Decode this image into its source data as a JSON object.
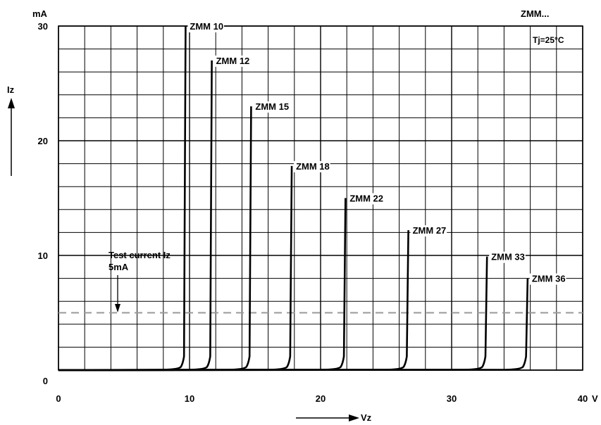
{
  "chart_data": {
    "type": "line",
    "top_right_label": "ZMM...",
    "condition_label": "Tj=25°C",
    "y_unit": "mA",
    "y_axis_label": "Iz",
    "x_axis_label": "Vz",
    "x_unit": "V",
    "xlim": [
      0,
      40
    ],
    "ylim": [
      0,
      30
    ],
    "x_tick_labels": [
      "0",
      "10",
      "20",
      "30",
      "40"
    ],
    "y_tick_labels": [
      "0",
      "10",
      "20",
      "30"
    ],
    "grid": true,
    "test_current": {
      "line1": "Test current Iz",
      "line2": "5mA",
      "value": 5
    },
    "series": [
      {
        "name": "ZMM 10",
        "breakdown_v": 9.7,
        "max_current": 30
      },
      {
        "name": "ZMM 12",
        "breakdown_v": 11.7,
        "max_current": 27
      },
      {
        "name": "ZMM 15",
        "breakdown_v": 14.7,
        "max_current": 23
      },
      {
        "name": "ZMM 18",
        "breakdown_v": 17.8,
        "max_current": 17.8
      },
      {
        "name": "ZMM 22",
        "breakdown_v": 21.9,
        "max_current": 15
      },
      {
        "name": "ZMM 27",
        "breakdown_v": 26.7,
        "max_current": 12.2
      },
      {
        "name": "ZMM 33",
        "breakdown_v": 32.7,
        "max_current": 9.9
      },
      {
        "name": "ZMM 36",
        "breakdown_v": 35.8,
        "max_current": 8
      }
    ]
  }
}
